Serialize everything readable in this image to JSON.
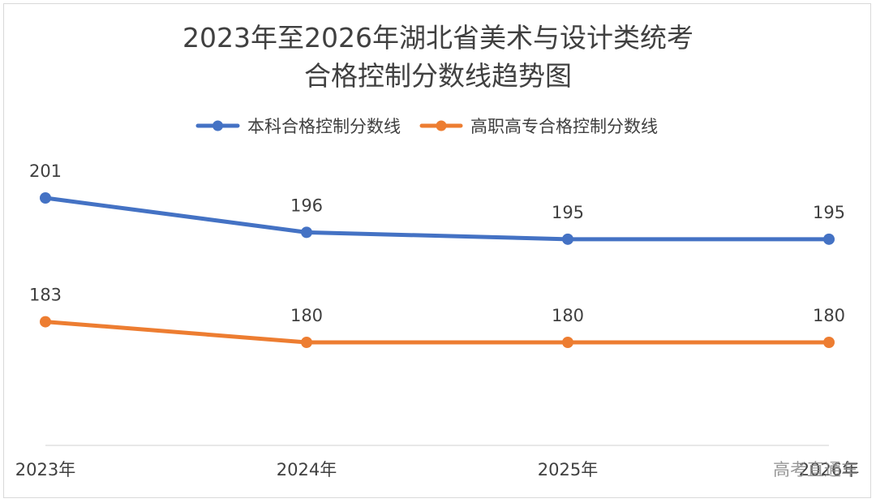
{
  "chart_data": {
    "type": "line",
    "title": [
      "2023年至2026年湖北省美术与设计类统考",
      "合格控制分数线趋势图"
    ],
    "xlabel": "",
    "ylabel": "",
    "categories": [
      "2023年",
      "2024年",
      "2025年",
      "2026年"
    ],
    "series": [
      {
        "name": "本科合格控制分数线",
        "values": [
          201,
          196,
          195,
          195
        ],
        "color": "#4472c4"
      },
      {
        "name": "高职高专合格控制分数线",
        "values": [
          183,
          180,
          180,
          180
        ],
        "color": "#ed7d31"
      }
    ],
    "ylim": [
      170,
      205
    ],
    "grid": false,
    "legend": "top-center",
    "data_labels": true
  },
  "watermark": "高考直通车"
}
